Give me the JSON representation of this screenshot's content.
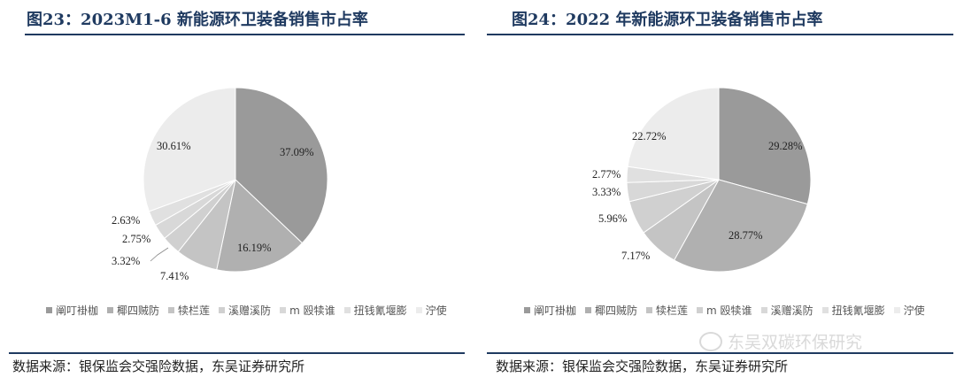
{
  "charts": [
    {
      "title": "图23：2023M1-6 新能源环卫装备销售市占率",
      "source": "数据来源：银保监会交强险数据，东吴证券研究所",
      "pct_labels": [
        "37.09%",
        "16.19%",
        "7.41%",
        "3.32%",
        "2.75%",
        "2.63%",
        "30.61%"
      ],
      "legend_labels": [
        "阐叮褂枷",
        "椰四贼防",
        "犊栏莲",
        "溪赠溪防",
        "m 殴犊谁",
        "扭钱氰堰膨",
        "泞使"
      ]
    },
    {
      "title": "图24：2022 年新能源环卫装备销售市占率",
      "source": "数据来源：银保监会交强险数据，东吴证券研究所",
      "pct_labels": [
        "29.28%",
        "28.77%",
        "7.17%",
        "5.96%",
        "3.33%",
        "2.77%",
        "22.72%"
      ],
      "legend_labels": [
        "阐叮褂枷",
        "椰四贼防",
        "犊栏莲",
        "m 殴犊谁",
        "溪赠溪防",
        "扭钱氰堰膨",
        "泞使"
      ]
    }
  ],
  "chart_data": [
    {
      "type": "pie",
      "title": "2023M1-6 新能源环卫装备销售市占率",
      "categories": [
        "阐叮褂枷",
        "椰四贼防",
        "犊栏莲",
        "溪赠溪防",
        "m 殴犊谁",
        "扭钱氰堰膨",
        "泞使"
      ],
      "values": [
        37.09,
        16.19,
        7.41,
        3.32,
        2.75,
        2.63,
        30.61
      ],
      "colors": [
        "#9a9a9a",
        "#b0b0b0",
        "#c4c4c4",
        "#d0d0d0",
        "#d8d8d8",
        "#e0e0e0",
        "#ececec"
      ],
      "legend": "bottom"
    },
    {
      "type": "pie",
      "title": "2022 年新能源环卫装备销售市占率",
      "categories": [
        "阐叮褂枷",
        "椰四贼防",
        "犊栏莲",
        "m 殴犊谁",
        "溪赠溪防",
        "扭钱氰堰膨",
        "泞使"
      ],
      "values": [
        29.28,
        28.77,
        7.17,
        5.96,
        3.33,
        2.77,
        22.72
      ],
      "colors": [
        "#9a9a9a",
        "#b0b0b0",
        "#c4c4c4",
        "#d0d0d0",
        "#d8d8d8",
        "#e0e0e0",
        "#ececec"
      ],
      "legend": "bottom"
    }
  ],
  "watermark": {
    "icon": "wechat-icon",
    "text": "东吴双碳环保研究"
  }
}
